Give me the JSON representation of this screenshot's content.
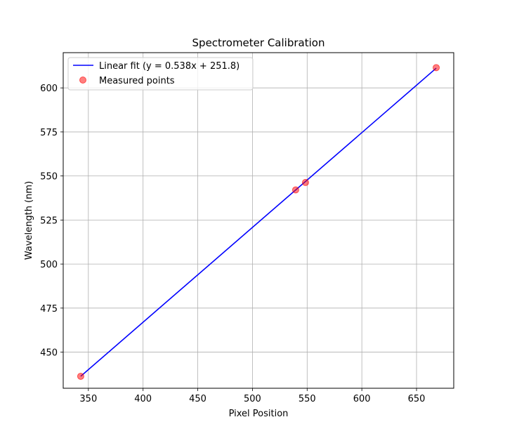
{
  "chart_data": {
    "type": "scatter",
    "title": "Spectrometer Calibration",
    "xlabel": "Pixel Position",
    "ylabel": "Wavelength (nm)",
    "xlim": [
      327,
      684
    ],
    "ylim": [
      429.5,
      620
    ],
    "xticks": [
      350,
      400,
      450,
      500,
      550,
      600,
      650
    ],
    "yticks": [
      450,
      475,
      500,
      525,
      550,
      575,
      600
    ],
    "grid": true,
    "legend_position": "top-left",
    "series": [
      {
        "name": "Linear fit (y = 0.538x + 251.8)",
        "kind": "line",
        "color": "#0000ff",
        "x": [
          343,
          668
        ],
        "y": [
          436.3,
          611.2
        ]
      },
      {
        "name": "Measured points",
        "kind": "scatter",
        "color": "#ff0000",
        "alpha": 0.5,
        "x": [
          343,
          539.5,
          548.5,
          668
        ],
        "y": [
          436.3,
          542.1,
          546.3,
          611.5
        ]
      }
    ]
  }
}
